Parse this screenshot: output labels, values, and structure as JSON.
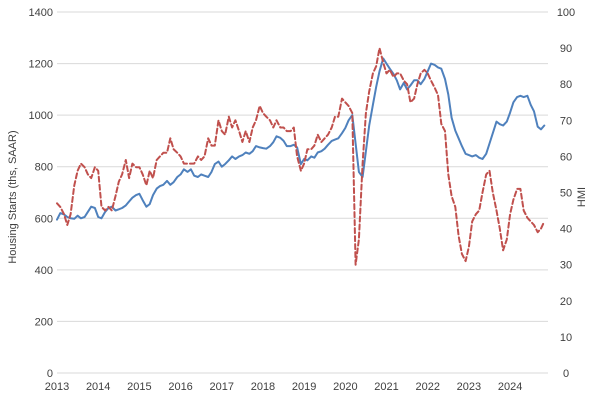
{
  "chart_data": {
    "type": "line",
    "title": "",
    "xlabel": "",
    "ylabel": "Housing Starts (ths, SAAR)",
    "y2label": "HMI",
    "xlim": [
      2013.0,
      2024.92
    ],
    "ylim": [
      0,
      1400
    ],
    "y2lim": [
      0,
      100
    ],
    "x_ticks": [
      "2013",
      "2014",
      "2015",
      "2016",
      "2017",
      "2018",
      "2019",
      "2020",
      "2021",
      "2022",
      "2023",
      "2024"
    ],
    "y_ticks": [
      0,
      200,
      400,
      600,
      800,
      1000,
      1200,
      1400
    ],
    "y2_ticks": [
      0,
      10,
      20,
      30,
      40,
      50,
      60,
      70,
      80,
      90,
      100
    ],
    "grid": "horizontal",
    "legend": "none",
    "series": [
      {
        "axis": "left",
        "color": "#4f81bd",
        "style": "solid",
        "points": [
          [
            2013.0,
            595
          ],
          [
            2013.08,
            620
          ],
          [
            2013.17,
            615
          ],
          [
            2013.25,
            605
          ],
          [
            2013.33,
            600
          ],
          [
            2013.42,
            598
          ],
          [
            2013.5,
            610
          ],
          [
            2013.58,
            600
          ],
          [
            2013.67,
            605
          ],
          [
            2013.75,
            625
          ],
          [
            2013.83,
            645
          ],
          [
            2013.92,
            640
          ],
          [
            2014.0,
            605
          ],
          [
            2014.08,
            600
          ],
          [
            2014.17,
            625
          ],
          [
            2014.25,
            640
          ],
          [
            2014.33,
            645
          ],
          [
            2014.42,
            630
          ],
          [
            2014.5,
            635
          ],
          [
            2014.58,
            640
          ],
          [
            2014.67,
            650
          ],
          [
            2014.75,
            665
          ],
          [
            2014.83,
            680
          ],
          [
            2014.92,
            690
          ],
          [
            2015.0,
            695
          ],
          [
            2015.08,
            670
          ],
          [
            2015.17,
            645
          ],
          [
            2015.25,
            655
          ],
          [
            2015.33,
            690
          ],
          [
            2015.42,
            715
          ],
          [
            2015.5,
            725
          ],
          [
            2015.58,
            730
          ],
          [
            2015.67,
            745
          ],
          [
            2015.75,
            730
          ],
          [
            2015.83,
            740
          ],
          [
            2015.92,
            760
          ],
          [
            2016.0,
            770
          ],
          [
            2016.08,
            790
          ],
          [
            2016.17,
            780
          ],
          [
            2016.25,
            790
          ],
          [
            2016.33,
            765
          ],
          [
            2016.42,
            760
          ],
          [
            2016.5,
            770
          ],
          [
            2016.58,
            765
          ],
          [
            2016.67,
            760
          ],
          [
            2016.75,
            780
          ],
          [
            2016.83,
            810
          ],
          [
            2016.92,
            820
          ],
          [
            2017.0,
            800
          ],
          [
            2017.08,
            810
          ],
          [
            2017.17,
            825
          ],
          [
            2017.25,
            840
          ],
          [
            2017.33,
            830
          ],
          [
            2017.42,
            840
          ],
          [
            2017.5,
            845
          ],
          [
            2017.58,
            855
          ],
          [
            2017.67,
            850
          ],
          [
            2017.75,
            860
          ],
          [
            2017.83,
            880
          ],
          [
            2017.92,
            875
          ],
          [
            2018.0,
            872
          ],
          [
            2018.08,
            870
          ],
          [
            2018.17,
            880
          ],
          [
            2018.25,
            895
          ],
          [
            2018.33,
            918
          ],
          [
            2018.42,
            912
          ],
          [
            2018.5,
            900
          ],
          [
            2018.58,
            880
          ],
          [
            2018.67,
            880
          ],
          [
            2018.75,
            885
          ],
          [
            2018.83,
            875
          ],
          [
            2018.92,
            810
          ],
          [
            2019.0,
            830
          ],
          [
            2019.08,
            825
          ],
          [
            2019.17,
            840
          ],
          [
            2019.25,
            835
          ],
          [
            2019.33,
            855
          ],
          [
            2019.42,
            860
          ],
          [
            2019.5,
            870
          ],
          [
            2019.58,
            885
          ],
          [
            2019.67,
            900
          ],
          [
            2019.75,
            905
          ],
          [
            2019.83,
            910
          ],
          [
            2019.92,
            930
          ],
          [
            2020.0,
            950
          ],
          [
            2020.08,
            980
          ],
          [
            2020.17,
            1000
          ],
          [
            2020.25,
            890
          ],
          [
            2020.33,
            780
          ],
          [
            2020.42,
            760
          ],
          [
            2020.5,
            860
          ],
          [
            2020.58,
            960
          ],
          [
            2020.67,
            1040
          ],
          [
            2020.75,
            1110
          ],
          [
            2020.83,
            1170
          ],
          [
            2020.92,
            1220
          ],
          [
            2021.0,
            1200
          ],
          [
            2021.08,
            1180
          ],
          [
            2021.17,
            1160
          ],
          [
            2021.25,
            1135
          ],
          [
            2021.33,
            1100
          ],
          [
            2021.42,
            1125
          ],
          [
            2021.5,
            1100
          ],
          [
            2021.58,
            1115
          ],
          [
            2021.67,
            1135
          ],
          [
            2021.75,
            1135
          ],
          [
            2021.83,
            1120
          ],
          [
            2021.92,
            1140
          ],
          [
            2022.0,
            1170
          ],
          [
            2022.08,
            1200
          ],
          [
            2022.17,
            1195
          ],
          [
            2022.25,
            1185
          ],
          [
            2022.33,
            1180
          ],
          [
            2022.42,
            1140
          ],
          [
            2022.5,
            1080
          ],
          [
            2022.58,
            990
          ],
          [
            2022.67,
            940
          ],
          [
            2022.75,
            910
          ],
          [
            2022.83,
            880
          ],
          [
            2022.92,
            850
          ],
          [
            2023.0,
            845
          ],
          [
            2023.08,
            840
          ],
          [
            2023.17,
            845
          ],
          [
            2023.25,
            835
          ],
          [
            2023.33,
            830
          ],
          [
            2023.42,
            850
          ],
          [
            2023.5,
            890
          ],
          [
            2023.58,
            930
          ],
          [
            2023.67,
            975
          ],
          [
            2023.75,
            965
          ],
          [
            2023.83,
            960
          ],
          [
            2023.92,
            975
          ],
          [
            2024.0,
            1010
          ],
          [
            2024.08,
            1050
          ],
          [
            2024.17,
            1070
          ],
          [
            2024.25,
            1075
          ],
          [
            2024.33,
            1070
          ],
          [
            2024.42,
            1075
          ],
          [
            2024.5,
            1040
          ],
          [
            2024.58,
            1015
          ],
          [
            2024.67,
            955
          ],
          [
            2024.75,
            945
          ],
          [
            2024.83,
            960
          ]
        ]
      },
      {
        "axis": "right",
        "color": "#c0504d",
        "style": "dashed",
        "points": [
          [
            2013.0,
            47
          ],
          [
            2013.08,
            46
          ],
          [
            2013.17,
            44
          ],
          [
            2013.25,
            41
          ],
          [
            2013.33,
            44
          ],
          [
            2013.42,
            52
          ],
          [
            2013.5,
            56
          ],
          [
            2013.58,
            58
          ],
          [
            2013.67,
            57
          ],
          [
            2013.75,
            55
          ],
          [
            2013.83,
            54
          ],
          [
            2013.92,
            57
          ],
          [
            2014.0,
            56
          ],
          [
            2014.08,
            46
          ],
          [
            2014.17,
            45
          ],
          [
            2014.25,
            46
          ],
          [
            2014.33,
            45
          ],
          [
            2014.42,
            49
          ],
          [
            2014.5,
            53
          ],
          [
            2014.58,
            55
          ],
          [
            2014.67,
            59
          ],
          [
            2014.75,
            54
          ],
          [
            2014.83,
            58
          ],
          [
            2014.92,
            57
          ],
          [
            2015.0,
            57
          ],
          [
            2015.08,
            55
          ],
          [
            2015.17,
            52
          ],
          [
            2015.25,
            56
          ],
          [
            2015.33,
            54
          ],
          [
            2015.42,
            59
          ],
          [
            2015.5,
            60
          ],
          [
            2015.58,
            61
          ],
          [
            2015.67,
            61
          ],
          [
            2015.75,
            65
          ],
          [
            2015.83,
            62
          ],
          [
            2015.92,
            61
          ],
          [
            2016.0,
            60
          ],
          [
            2016.08,
            58
          ],
          [
            2016.17,
            58
          ],
          [
            2016.25,
            58
          ],
          [
            2016.33,
            58
          ],
          [
            2016.42,
            60
          ],
          [
            2016.5,
            59
          ],
          [
            2016.58,
            60
          ],
          [
            2016.67,
            65
          ],
          [
            2016.75,
            63
          ],
          [
            2016.83,
            63
          ],
          [
            2016.92,
            70
          ],
          [
            2017.0,
            67
          ],
          [
            2017.08,
            66
          ],
          [
            2017.17,
            71
          ],
          [
            2017.25,
            68
          ],
          [
            2017.33,
            70
          ],
          [
            2017.42,
            67
          ],
          [
            2017.5,
            64
          ],
          [
            2017.58,
            67
          ],
          [
            2017.67,
            64
          ],
          [
            2017.75,
            68
          ],
          [
            2017.83,
            70
          ],
          [
            2017.92,
            74
          ],
          [
            2018.0,
            72
          ],
          [
            2018.08,
            71
          ],
          [
            2018.17,
            70
          ],
          [
            2018.25,
            68
          ],
          [
            2018.33,
            70
          ],
          [
            2018.42,
            68
          ],
          [
            2018.5,
            68
          ],
          [
            2018.58,
            67
          ],
          [
            2018.67,
            67
          ],
          [
            2018.75,
            68
          ],
          [
            2018.83,
            60
          ],
          [
            2018.92,
            56
          ],
          [
            2019.0,
            58
          ],
          [
            2019.08,
            62
          ],
          [
            2019.17,
            62
          ],
          [
            2019.25,
            63
          ],
          [
            2019.33,
            66
          ],
          [
            2019.42,
            64
          ],
          [
            2019.5,
            65
          ],
          [
            2019.58,
            66
          ],
          [
            2019.67,
            68
          ],
          [
            2019.75,
            71
          ],
          [
            2019.83,
            71
          ],
          [
            2019.92,
            76
          ],
          [
            2020.0,
            75
          ],
          [
            2020.08,
            74
          ],
          [
            2020.17,
            72
          ],
          [
            2020.25,
            30
          ],
          [
            2020.33,
            37
          ],
          [
            2020.42,
            58
          ],
          [
            2020.5,
            72
          ],
          [
            2020.58,
            78
          ],
          [
            2020.67,
            83
          ],
          [
            2020.75,
            85
          ],
          [
            2020.83,
            90
          ],
          [
            2020.92,
            86
          ],
          [
            2021.0,
            83
          ],
          [
            2021.08,
            84
          ],
          [
            2021.17,
            82
          ],
          [
            2021.25,
            83
          ],
          [
            2021.33,
            83
          ],
          [
            2021.42,
            81
          ],
          [
            2021.5,
            80
          ],
          [
            2021.58,
            75
          ],
          [
            2021.67,
            76
          ],
          [
            2021.75,
            80
          ],
          [
            2021.83,
            83
          ],
          [
            2021.92,
            84
          ],
          [
            2022.0,
            83
          ],
          [
            2022.08,
            81
          ],
          [
            2022.17,
            79
          ],
          [
            2022.25,
            77
          ],
          [
            2022.33,
            69
          ],
          [
            2022.42,
            67
          ],
          [
            2022.5,
            55
          ],
          [
            2022.58,
            49
          ],
          [
            2022.67,
            46
          ],
          [
            2022.75,
            38
          ],
          [
            2022.83,
            33
          ],
          [
            2022.92,
            31
          ],
          [
            2023.0,
            35
          ],
          [
            2023.08,
            42
          ],
          [
            2023.17,
            44
          ],
          [
            2023.25,
            45
          ],
          [
            2023.33,
            50
          ],
          [
            2023.42,
            55
          ],
          [
            2023.5,
            56
          ],
          [
            2023.58,
            50
          ],
          [
            2023.67,
            45
          ],
          [
            2023.75,
            40
          ],
          [
            2023.83,
            34
          ],
          [
            2023.92,
            37
          ],
          [
            2024.0,
            44
          ],
          [
            2024.08,
            48
          ],
          [
            2024.17,
            51
          ],
          [
            2024.25,
            51
          ],
          [
            2024.33,
            45
          ],
          [
            2024.42,
            43
          ],
          [
            2024.5,
            42
          ],
          [
            2024.58,
            41
          ],
          [
            2024.67,
            39
          ],
          [
            2024.75,
            40
          ],
          [
            2024.83,
            42
          ]
        ]
      }
    ]
  }
}
